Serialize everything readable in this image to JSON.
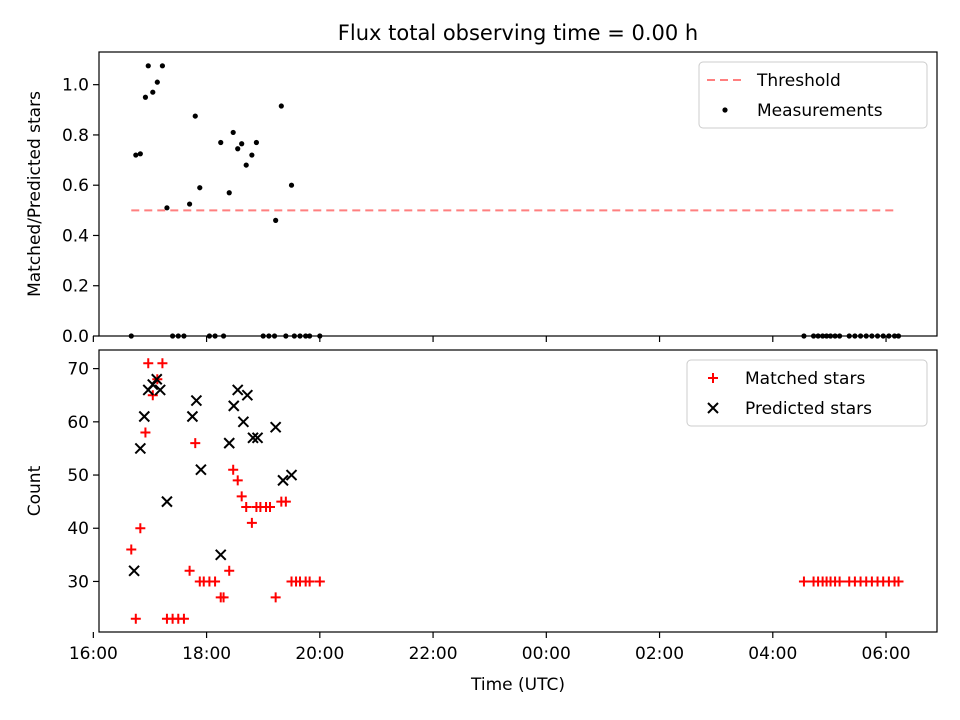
{
  "title": "Flux total observing time = 0.00 h",
  "chart_data": [
    {
      "type": "scatter",
      "panel": "top",
      "ylabel": "Matched/Predicted stars",
      "xlabel": "",
      "xlim": [
        16.1,
        30.9
      ],
      "ylim": [
        0,
        1.13
      ],
      "yticks": [
        0.0,
        0.2,
        0.4,
        0.6,
        0.8,
        1.0
      ],
      "ytick_labels": [
        "0.0",
        "0.2",
        "0.4",
        "0.6",
        "0.8",
        "1.0"
      ],
      "legend": [
        "Threshold",
        "Measurements"
      ],
      "legend_position": "top-right",
      "series": [
        {
          "name": "Threshold",
          "style": "dashed-line",
          "color": "#ff7f7f",
          "x": [
            16.67,
            30.15
          ],
          "y": [
            0.5,
            0.5
          ]
        },
        {
          "name": "Measurements",
          "style": "dot",
          "color": "#000000",
          "x": [
            16.67,
            16.75,
            16.83,
            16.92,
            16.97,
            17.05,
            17.13,
            17.22,
            17.3,
            17.7,
            17.8,
            17.88,
            18.25,
            18.4,
            18.47,
            18.55,
            18.62,
            18.7,
            18.8,
            18.88,
            19.22,
            19.32,
            19.5,
            17.4,
            17.5,
            17.6,
            18.05,
            18.15,
            18.3,
            19.0,
            19.1,
            19.2,
            19.4,
            19.55,
            19.65,
            19.75,
            19.82,
            20.0,
            28.55,
            28.72,
            28.8,
            28.88,
            28.95,
            29.02,
            29.1,
            29.18,
            29.35,
            29.45,
            29.55,
            29.65,
            29.75,
            29.85,
            29.95,
            30.05,
            30.15,
            30.22
          ],
          "y": [
            0.0,
            0.72,
            0.725,
            0.95,
            1.075,
            0.97,
            1.01,
            1.075,
            0.51,
            0.525,
            0.875,
            0.59,
            0.77,
            0.57,
            0.81,
            0.745,
            0.765,
            0.68,
            0.72,
            0.77,
            0.46,
            0.915,
            0.6,
            0.0,
            0.0,
            0.0,
            0.0,
            0.0,
            0.0,
            0.0,
            0.0,
            0.0,
            0.0,
            0.0,
            0.0,
            0.0,
            0.0,
            0.0,
            0.0,
            0.0,
            0.0,
            0.0,
            0.0,
            0.0,
            0.0,
            0.0,
            0.0,
            0.0,
            0.0,
            0.0,
            0.0,
            0.0,
            0.0,
            0.0,
            0.0,
            0.0
          ]
        }
      ]
    },
    {
      "type": "scatter",
      "panel": "bottom",
      "ylabel": "Count",
      "xlabel": "Time (UTC)",
      "xlim": [
        16.1,
        30.9
      ],
      "ylim": [
        20.5,
        73.5
      ],
      "yticks": [
        30,
        40,
        50,
        60,
        70
      ],
      "ytick_labels": [
        "30",
        "40",
        "50",
        "60",
        "70"
      ],
      "xticks": [
        16,
        18,
        20,
        22,
        24,
        26,
        28,
        30
      ],
      "xtick_labels": [
        "16:00",
        "18:00",
        "20:00",
        "22:00",
        "00:00",
        "02:00",
        "04:00",
        "06:00"
      ],
      "legend": [
        "Matched stars",
        "Predicted stars"
      ],
      "legend_position": "top-right",
      "series": [
        {
          "name": "Matched stars",
          "style": "plus",
          "color": "#ff0000",
          "x": [
            16.67,
            16.75,
            16.83,
            16.92,
            16.97,
            17.05,
            17.13,
            17.22,
            17.3,
            17.4,
            17.5,
            17.6,
            17.7,
            17.8,
            17.88,
            17.95,
            18.05,
            18.15,
            18.25,
            18.3,
            18.4,
            18.47,
            18.55,
            18.62,
            18.7,
            18.8,
            18.88,
            18.95,
            19.05,
            19.12,
            19.22,
            19.32,
            19.4,
            19.5,
            19.58,
            19.65,
            19.75,
            19.82,
            20.0,
            28.55,
            28.72,
            28.8,
            28.88,
            28.95,
            29.02,
            29.1,
            29.18,
            29.35,
            29.45,
            29.55,
            29.65,
            29.75,
            29.85,
            29.95,
            30.05,
            30.15,
            30.22
          ],
          "y": [
            36,
            23,
            40,
            58,
            71,
            65,
            68,
            71,
            23,
            23,
            23,
            23,
            32,
            56,
            30,
            30,
            30,
            30,
            27,
            27,
            32,
            51,
            49,
            46,
            44,
            41,
            44,
            44,
            44,
            44,
            27,
            45,
            45,
            30,
            30,
            30,
            30,
            30,
            30,
            30,
            30,
            30,
            30,
            30,
            30,
            30,
            30,
            30,
            30,
            30,
            30,
            30,
            30,
            30,
            30,
            30,
            30
          ]
        },
        {
          "name": "Predicted stars",
          "style": "x",
          "color": "#000000",
          "x": [
            16.72,
            16.83,
            16.9,
            16.97,
            17.05,
            17.12,
            17.18,
            17.3,
            17.75,
            17.82,
            17.9,
            18.25,
            18.4,
            18.48,
            18.55,
            18.65,
            18.72,
            18.82,
            18.9,
            19.22,
            19.35,
            19.5
          ],
          "y": [
            32,
            55,
            61,
            66,
            67,
            68,
            66,
            45,
            61,
            64,
            51,
            35,
            56,
            63,
            66,
            60,
            65,
            57,
            57,
            59,
            49,
            50
          ]
        }
      ]
    }
  ]
}
